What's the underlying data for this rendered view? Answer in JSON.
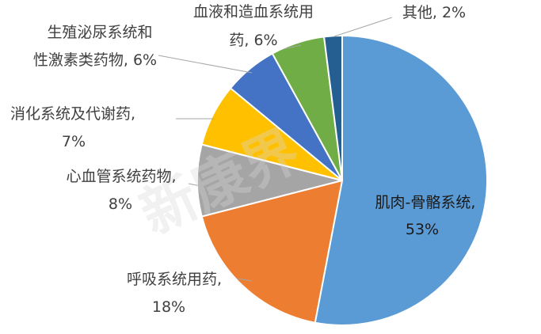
{
  "chart_data": {
    "type": "pie",
    "title": "",
    "slices": [
      {
        "label": "肌肉-骨骼系统,",
        "value": 53,
        "value_text": "53%",
        "color": "#5b9bd5"
      },
      {
        "label": "呼吸系统用药,",
        "value": 18,
        "value_text": "18%",
        "color": "#ed7d31"
      },
      {
        "label": "心血管系统药物,",
        "value": 8,
        "value_text": "8%",
        "color": "#a5a5a5"
      },
      {
        "label": "消化系统及代谢药,",
        "value": 7,
        "value_text": "7%",
        "color": "#ffc000"
      },
      {
        "label": "生殖泌尿系统和性激素类药物,",
        "value": 6,
        "value_text": "6%",
        "color": "#4472c4"
      },
      {
        "label": "血液和造血系统用药,",
        "value": 6,
        "value_text": "6%",
        "color": "#70ad47"
      },
      {
        "label": "其他,",
        "value": 2,
        "value_text": "2%",
        "color": "#255e91"
      }
    ],
    "start_angle_deg": 0,
    "direction": "clockwise",
    "legend": "none",
    "data_labels": "outside-with-leader-lines"
  },
  "watermark": {
    "text": "新康界"
  }
}
